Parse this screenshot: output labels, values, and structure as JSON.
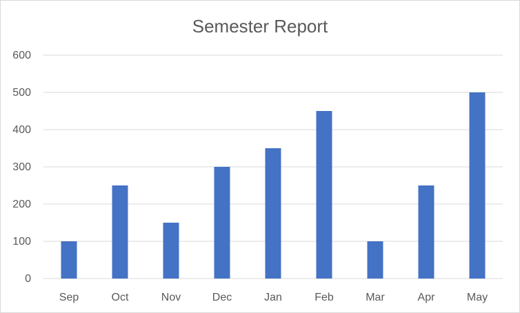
{
  "chart_data": {
    "type": "bar",
    "title": "Semester Report",
    "categories": [
      "Sep",
      "Oct",
      "Nov",
      "Dec",
      "Jan",
      "Feb",
      "Mar",
      "Apr",
      "May"
    ],
    "series": [
      {
        "values": [
          100,
          250,
          150,
          300,
          350,
          450,
          100,
          250,
          500
        ],
        "color": "#4472c4"
      }
    ],
    "xlabel": "",
    "ylabel": "",
    "ylim": [
      0,
      600
    ],
    "yticks": [
      0,
      100,
      200,
      300,
      400,
      500,
      600
    ],
    "ytick_labels": [
      "0",
      "100",
      "200",
      "300",
      "400",
      "500",
      "600"
    ],
    "grid": true,
    "legend": "none",
    "gridline_color": "#d9d9d9",
    "axis_label_color": "#595959"
  }
}
